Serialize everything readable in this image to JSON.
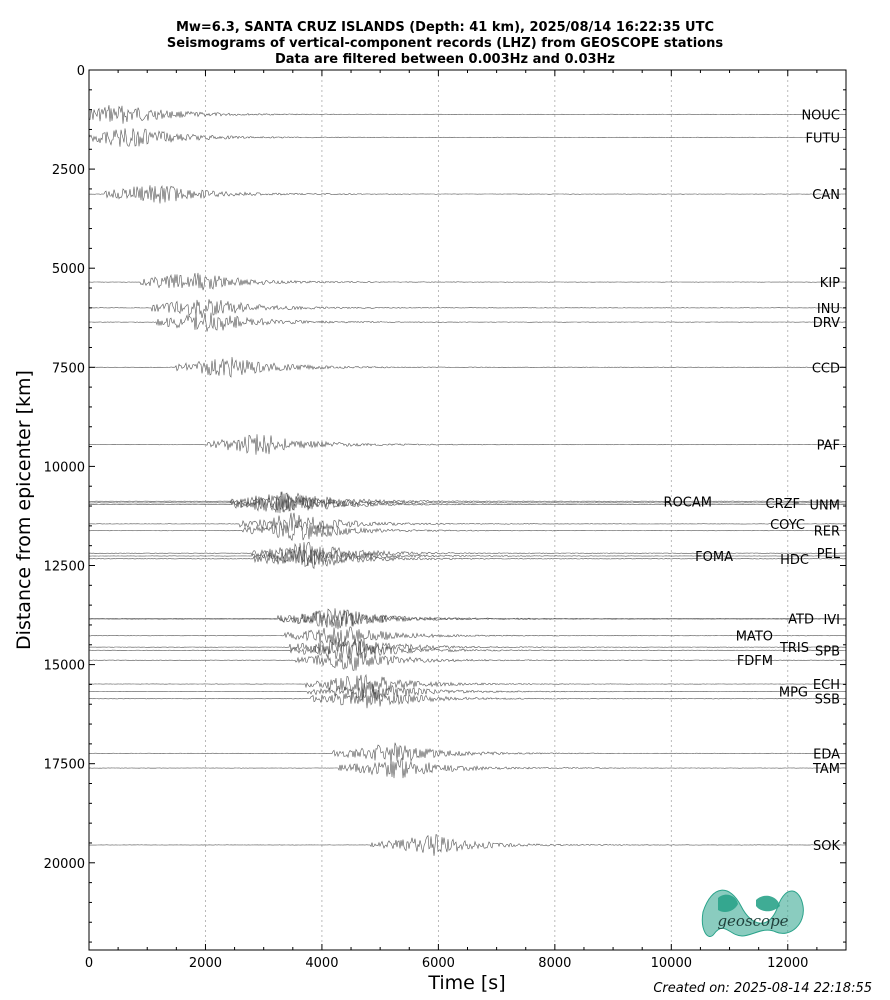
{
  "colors": {
    "trace": "#555555",
    "logo": "#2aa38a",
    "grid": "#aaaaaa"
  },
  "footer": {
    "created": "Created on: 2025-08-14 22:18:55"
  },
  "logo": {
    "text": "geoscope"
  },
  "chart_data": {
    "type": "line",
    "title": [
      "Mw=6.3, SANTA CRUZ ISLANDS (Depth: 41 km), 2025/08/14 16:22:35 UTC",
      "Seismograms of vertical-component records (LHZ) from GEOSCOPE stations",
      "Data are filtered between 0.003Hz and 0.03Hz"
    ],
    "xlabel": "Time [s]",
    "ylabel": "Distance from epicenter [km]",
    "xlim": [
      0,
      13000
    ],
    "ylim": [
      22200,
      0
    ],
    "y_inverted": true,
    "xticks": [
      0,
      2000,
      4000,
      6000,
      8000,
      10000,
      12000
    ],
    "yticks": [
      0,
      2500,
      5000,
      7500,
      10000,
      12500,
      15000,
      17500,
      20000
    ],
    "grid": "vertical dotted",
    "stations": [
      {
        "name": "NOUC",
        "distance": 1120
      },
      {
        "name": "FUTU",
        "distance": 1700
      },
      {
        "name": "CAN",
        "distance": 3130
      },
      {
        "name": "KIP",
        "distance": 5350
      },
      {
        "name": "INU",
        "distance": 6000
      },
      {
        "name": "DRV",
        "distance": 6360
      },
      {
        "name": "CCD",
        "distance": 7500
      },
      {
        "name": "PAF",
        "distance": 9450
      },
      {
        "name": "ROCAM",
        "distance": 10880
      },
      {
        "name": "CRZF",
        "distance": 10920
      },
      {
        "name": "UNM",
        "distance": 10960
      },
      {
        "name": "COYC",
        "distance": 11450
      },
      {
        "name": "RER",
        "distance": 11620
      },
      {
        "name": "FOMA",
        "distance": 12260
      },
      {
        "name": "HDC",
        "distance": 12330
      },
      {
        "name": "PEL",
        "distance": 12190
      },
      {
        "name": "ATD",
        "distance": 13840
      },
      {
        "name": "IVI",
        "distance": 13850
      },
      {
        "name": "MATO",
        "distance": 14270
      },
      {
        "name": "TRIS",
        "distance": 14560
      },
      {
        "name": "SPB",
        "distance": 14640
      },
      {
        "name": "FDFM",
        "distance": 14890
      },
      {
        "name": "ECH",
        "distance": 15490
      },
      {
        "name": "MPG",
        "distance": 15680
      },
      {
        "name": "SSB",
        "distance": 15860
      },
      {
        "name": "EDA",
        "distance": 17240
      },
      {
        "name": "TAM",
        "distance": 17610
      },
      {
        "name": "SOK",
        "distance": 19550
      }
    ]
  }
}
